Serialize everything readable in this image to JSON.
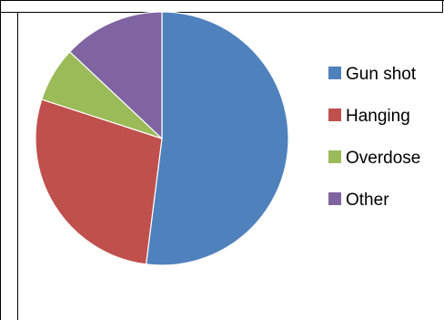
{
  "chart_data": {
    "type": "pie",
    "title": "",
    "categories": [
      "Gun shot",
      "Hanging",
      "Overdose",
      "Other"
    ],
    "values": [
      52,
      28,
      7,
      13
    ],
    "unit": "",
    "start_angle": "12 o'clock",
    "direction": "clockwise",
    "legend": {
      "placement": "right",
      "entries": [
        "Gun shot",
        "Hanging",
        "Overdose",
        "Other"
      ]
    },
    "colors": [
      "#4f81bd",
      "#c0504d",
      "#9bbb59",
      "#8064a2"
    ],
    "slice_edge_color": "#ffffff"
  }
}
